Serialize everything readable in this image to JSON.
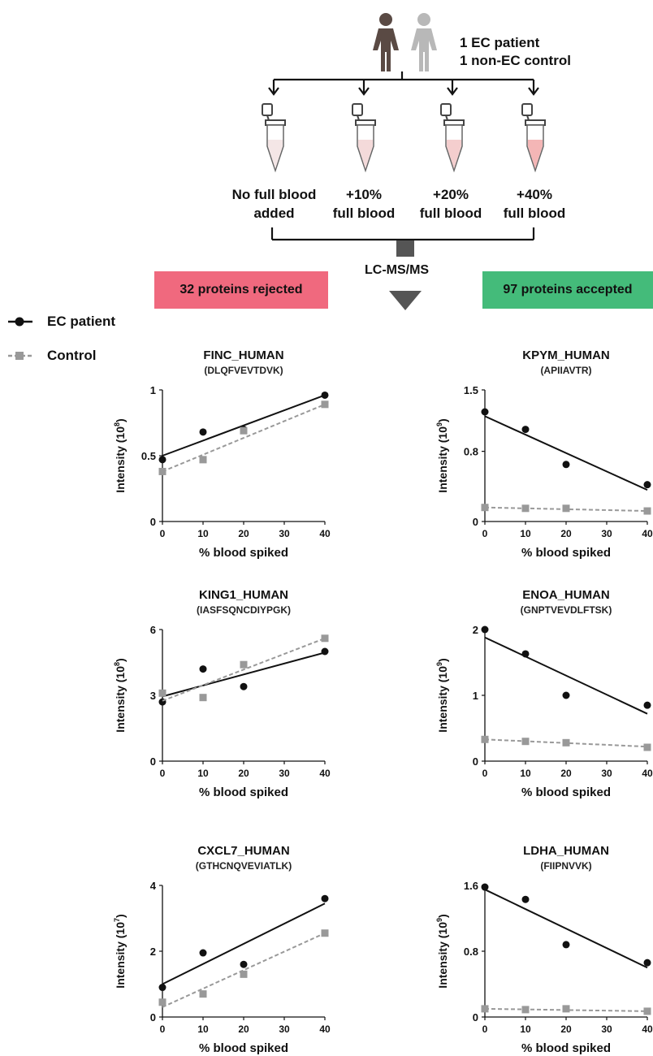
{
  "header": {
    "people_line1": "1 EC patient",
    "people_line2": "1 non-EC control",
    "conditions": [
      {
        "line1": "No full blood",
        "line2": "added",
        "fill": 0.0
      },
      {
        "line1": "+10%",
        "line2": "full blood",
        "fill": 0.1
      },
      {
        "line1": "+20%",
        "line2": "full blood",
        "fill": 0.2
      },
      {
        "line1": "+40%",
        "line2": "full blood",
        "fill": 0.4
      }
    ],
    "method": "LC-MS/MS",
    "rejected_label": "32 proteins rejected",
    "accepted_label": "97 proteins accepted",
    "rejected_color": "#f0697e",
    "accepted_color": "#44bb7a"
  },
  "legend": {
    "patient": "EC patient",
    "control": "Control",
    "patient_color": "#111111",
    "control_color": "#999999"
  },
  "chart_data": [
    {
      "type": "scatter",
      "title": "FINC_HUMAN",
      "subtitle": "(DLQFVEVTDVK)",
      "ylabel_base": "Intensity (10",
      "ylabel_exp": "8",
      "xlabel": "% blood spiked",
      "xlim": [
        0,
        40
      ],
      "ylim": [
        0,
        1
      ],
      "xticks": [
        "0",
        "10",
        "20",
        "30",
        "40"
      ],
      "yticks": [
        {
          "v": 0,
          "l": "0"
        },
        {
          "v": 0.5,
          "l": "0.5"
        },
        {
          "v": 1,
          "l": "1"
        }
      ],
      "x": [
        0,
        10,
        20,
        40
      ],
      "series": [
        {
          "name": "EC patient",
          "values": [
            0.47,
            0.68,
            0.7,
            0.96
          ],
          "fit": [
            0.5,
            0.96
          ]
        },
        {
          "name": "Control",
          "values": [
            0.38,
            0.47,
            0.69,
            0.89
          ],
          "fit": [
            0.38,
            0.89
          ]
        }
      ]
    },
    {
      "type": "scatter",
      "title": "KPYM_HUMAN",
      "subtitle": "(APIIAVTR)",
      "ylabel_base": "Intensity (10",
      "ylabel_exp": "9",
      "xlabel": "% blood spiked",
      "xlim": [
        0,
        40
      ],
      "ylim": [
        0,
        1.5
      ],
      "xticks": [
        "0",
        "10",
        "20",
        "30",
        "40"
      ],
      "yticks": [
        {
          "v": 0,
          "l": "0"
        },
        {
          "v": 0.8,
          "l": "0.8"
        },
        {
          "v": 1.5,
          "l": "1.5"
        }
      ],
      "x": [
        0,
        10,
        20,
        40
      ],
      "series": [
        {
          "name": "EC patient",
          "values": [
            1.25,
            1.05,
            0.65,
            0.42
          ],
          "fit": [
            1.2,
            0.36
          ]
        },
        {
          "name": "Control",
          "values": [
            0.16,
            0.15,
            0.15,
            0.12
          ],
          "fit": [
            0.16,
            0.12
          ]
        }
      ]
    },
    {
      "type": "scatter",
      "title": "KING1_HUMAN",
      "subtitle": "(IASFSQNCDIYPGK)",
      "ylabel_base": "Intensity (10",
      "ylabel_exp": "8",
      "xlabel": "% blood spiked",
      "xlim": [
        0,
        40
      ],
      "ylim": [
        0,
        6
      ],
      "xticks": [
        "0",
        "10",
        "20",
        "30",
        "40"
      ],
      "yticks": [
        {
          "v": 0,
          "l": "0"
        },
        {
          "v": 3,
          "l": "3"
        },
        {
          "v": 6,
          "l": "6"
        }
      ],
      "x": [
        0,
        10,
        20,
        40
      ],
      "series": [
        {
          "name": "EC patient",
          "values": [
            2.7,
            4.2,
            3.4,
            5.0
          ],
          "fit": [
            2.95,
            4.95
          ]
        },
        {
          "name": "Control",
          "values": [
            3.1,
            2.9,
            4.4,
            5.6
          ],
          "fit": [
            2.75,
            5.6
          ]
        }
      ]
    },
    {
      "type": "scatter",
      "title": "ENOA_HUMAN",
      "subtitle": "(GNPTVEVDLFTSK)",
      "ylabel_base": "Intensity (10",
      "ylabel_exp": "9",
      "xlabel": "% blood spiked",
      "xlim": [
        0,
        40
      ],
      "ylim": [
        0,
        2
      ],
      "xticks": [
        "0",
        "10",
        "20",
        "30",
        "40"
      ],
      "yticks": [
        {
          "v": 0,
          "l": "0"
        },
        {
          "v": 1,
          "l": "1"
        },
        {
          "v": 2,
          "l": "2"
        }
      ],
      "x": [
        0,
        10,
        20,
        40
      ],
      "series": [
        {
          "name": "EC patient",
          "values": [
            2.0,
            1.63,
            1.0,
            0.85
          ],
          "fit": [
            1.88,
            0.72
          ]
        },
        {
          "name": "Control",
          "values": [
            0.33,
            0.3,
            0.28,
            0.21
          ],
          "fit": [
            0.33,
            0.22
          ]
        }
      ]
    },
    {
      "type": "scatter",
      "title": "CXCL7_HUMAN",
      "subtitle": "(GTHCNQVEVIATLK)",
      "ylabel_base": "Intensity (10",
      "ylabel_exp": "7",
      "xlabel": "% blood spiked",
      "xlim": [
        0,
        40
      ],
      "ylim": [
        0,
        4
      ],
      "xticks": [
        "0",
        "10",
        "20",
        "30",
        "40"
      ],
      "yticks": [
        {
          "v": 0,
          "l": "0"
        },
        {
          "v": 2,
          "l": "2"
        },
        {
          "v": 4,
          "l": "4"
        }
      ],
      "x": [
        0,
        10,
        20,
        40
      ],
      "series": [
        {
          "name": "EC patient",
          "values": [
            0.9,
            1.95,
            1.6,
            3.6
          ],
          "fit": [
            1.0,
            3.45
          ]
        },
        {
          "name": "Control",
          "values": [
            0.45,
            0.7,
            1.3,
            2.55
          ],
          "fit": [
            0.3,
            2.55
          ]
        }
      ]
    },
    {
      "type": "scatter",
      "title": "LDHA_HUMAN",
      "subtitle": "(FIIPNVVK)",
      "ylabel_base": "Intensity (10",
      "ylabel_exp": "9",
      "xlabel": "% blood spiked",
      "xlim": [
        0,
        40
      ],
      "ylim": [
        0,
        1.6
      ],
      "xticks": [
        "0",
        "10",
        "20",
        "30",
        "40"
      ],
      "yticks": [
        {
          "v": 0,
          "l": "0"
        },
        {
          "v": 0.8,
          "l": "0.8"
        },
        {
          "v": 1.6,
          "l": "1.6"
        }
      ],
      "x": [
        0,
        10,
        20,
        40
      ],
      "series": [
        {
          "name": "EC patient",
          "values": [
            1.58,
            1.43,
            0.88,
            0.66
          ],
          "fit": [
            1.55,
            0.6
          ]
        },
        {
          "name": "Control",
          "values": [
            0.1,
            0.09,
            0.1,
            0.07
          ],
          "fit": [
            0.1,
            0.07
          ]
        }
      ]
    }
  ]
}
